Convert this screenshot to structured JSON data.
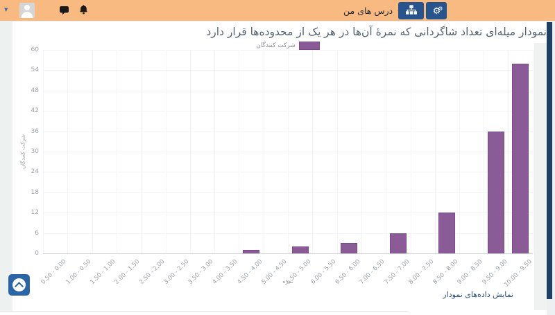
{
  "navbar": {
    "bg_color": "#F8BA80",
    "button_color": "#27548C",
    "courses_menu_label": "درس های من",
    "caret": "▾",
    "left_caret": "▼",
    "buttons": [
      {
        "icon": "sitemap-icon"
      },
      {
        "icon": "gears-icon"
      }
    ],
    "gear_glyph": "⚙"
  },
  "chart_data": {
    "type": "bar",
    "title": "نمودار میله‌ای تعداد شاگردانی که نمرهٔ آن‌ها در هر یک از محدوده‌ها قرار دارد",
    "legend": [
      "شرکت کنندگان"
    ],
    "legend_position": "top",
    "xlabel": "نمره",
    "ylabel": "شرکت کنندگان",
    "ylim": [
      0,
      60
    ],
    "ytick_step": 6,
    "grid": true,
    "bar_color": "#8A5B97",
    "bar_border_color": "#7A4C87",
    "categories": [
      "0.50 - 0.00",
      "1.00 - 0.50",
      "1.50 - 1.00",
      "2.00 - 1.50",
      "2.50 - 2.00",
      "3.00 - 2.50",
      "3.50 - 3.00",
      "4.00 - 3.50",
      "4.50 - 4.00",
      "5.00 - 4.50",
      "5.50 - 5.00",
      "6.00 - 5.50",
      "6.50 - 6.00",
      "7.00 - 6.50",
      "7.50 - 7.00",
      "8.00 - 7.50",
      "8.50 - 8.00",
      "9.00 - 8.50",
      "9.50 - 9.00",
      "10.00 - 9.50"
    ],
    "values": [
      0,
      0,
      0,
      0,
      0,
      0,
      0,
      0,
      1,
      0,
      2,
      0,
      3,
      0,
      6,
      0,
      12,
      0,
      36,
      56
    ]
  },
  "footer": {
    "show_data_label": "نمایش داده‌های نمودار"
  }
}
